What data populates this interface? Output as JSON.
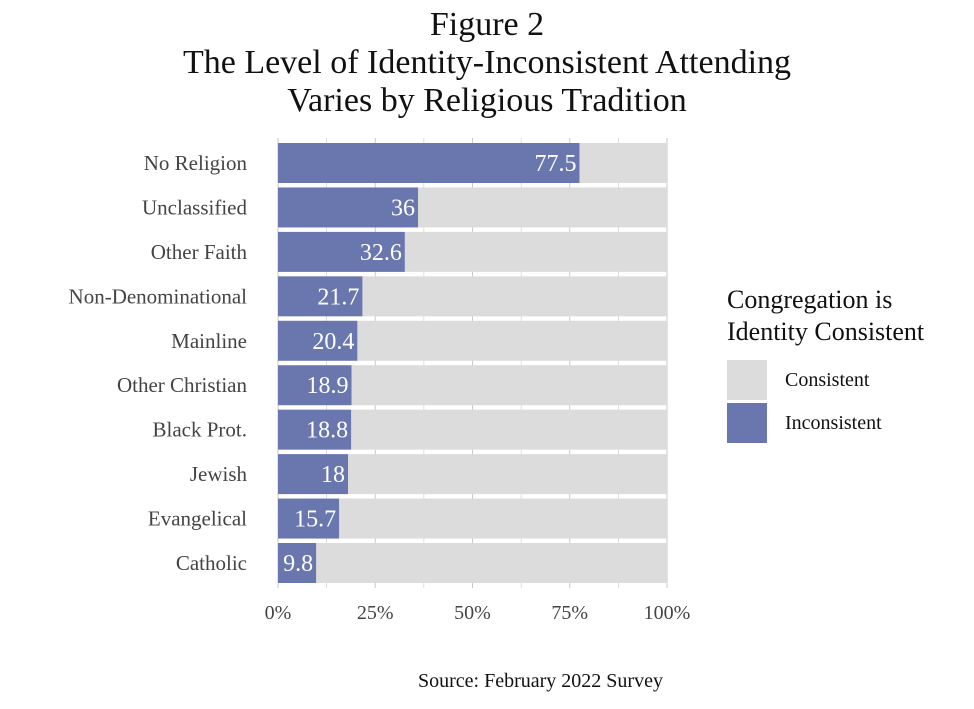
{
  "figure": {
    "title_lines": [
      "Figure 2",
      "The Level of Identity-Inconsistent Attending",
      "Varies by Religious Tradition"
    ],
    "source": "Source: February 2022 Survey"
  },
  "colors": {
    "consistent": "#dcdcdc",
    "inconsistent": "#6a77ae",
    "grid": "#c9c9c9"
  },
  "legend": {
    "title_lines": [
      "Congregation is",
      "Identity Consistent"
    ],
    "items": [
      {
        "label": "Consistent",
        "color": "#dcdcdc"
      },
      {
        "label": "Inconsistent",
        "color": "#6a77ae"
      }
    ]
  },
  "chart_data": {
    "type": "bar",
    "orientation": "horizontal",
    "stacked": true,
    "title": "Figure 2 The Level of Identity-Inconsistent Attending Varies by Religious Tradition",
    "xlabel": "",
    "ylabel": "",
    "categories": [
      "No Religion",
      "Unclassified",
      "Other Faith",
      "Non-Denominational",
      "Mainline",
      "Other Christian",
      "Black Prot.",
      "Jewish",
      "Evangelical",
      "Catholic"
    ],
    "series": [
      {
        "name": "Inconsistent",
        "values": [
          77.5,
          36,
          32.6,
          21.7,
          20.4,
          18.9,
          18.8,
          18,
          15.7,
          9.8
        ]
      },
      {
        "name": "Consistent",
        "values": [
          22.5,
          64,
          67.4,
          78.3,
          79.6,
          81.1,
          81.2,
          82,
          84.3,
          90.2
        ]
      }
    ],
    "data_labels": [
      "77.5",
      "36",
      "32.6",
      "21.7",
      "20.4",
      "18.9",
      "18.8",
      "18",
      "15.7",
      "9.8"
    ],
    "xticks": [
      "0%",
      "25%",
      "50%",
      "75%",
      "100%"
    ],
    "xlim": [
      0,
      100
    ],
    "grid": true,
    "legend_position": "right"
  }
}
